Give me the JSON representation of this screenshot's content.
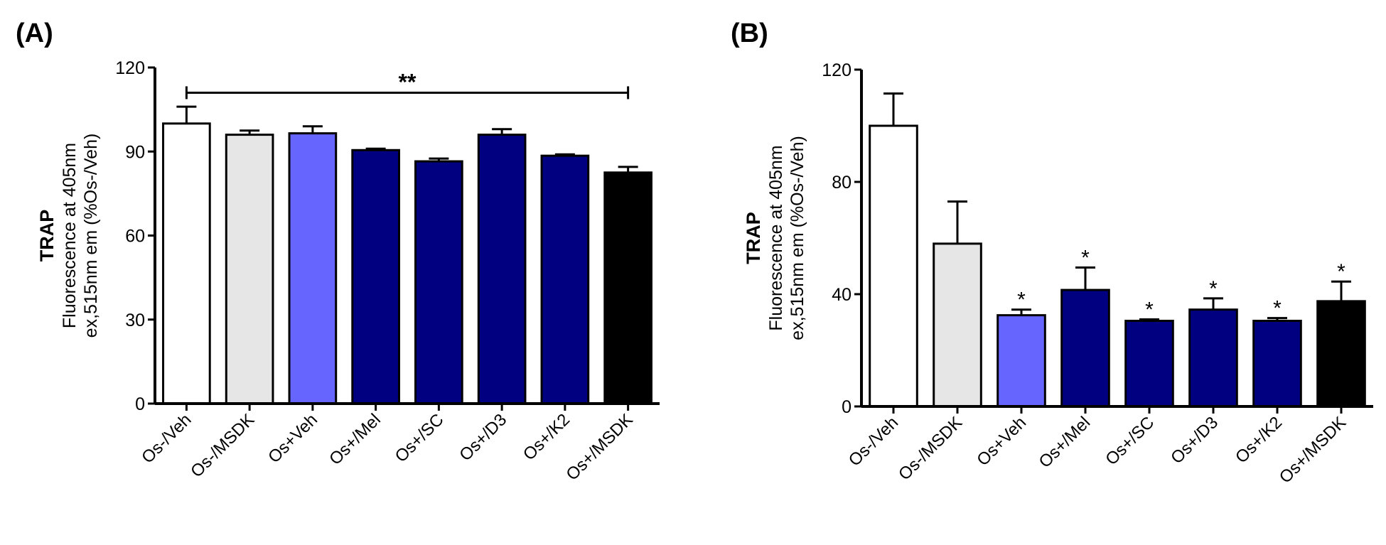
{
  "chart_data": [
    {
      "panel_label": "(A)",
      "type": "bar",
      "ylabel_bold": "TRAP",
      "ylabel_line1": "Fluorescence at 405nm",
      "ylabel_line2": "ex,515nm em (%Os-/Veh)",
      "ylim": [
        0,
        120
      ],
      "yticks": [
        0,
        30,
        60,
        90,
        120
      ],
      "categories": [
        "Os-/Veh",
        "Os-/MSDK",
        "Os+Veh",
        "Os+/Mel",
        "Os+/SC",
        "Os+/D3",
        "Os+/K2",
        "Os+/MSDK"
      ],
      "values": [
        100,
        96,
        96.5,
        90.5,
        86.5,
        96,
        88.5,
        82.5
      ],
      "errors": [
        6,
        1.5,
        2.5,
        0.5,
        1,
        2,
        0.5,
        2
      ],
      "colors": [
        "#ffffff",
        "#e6e6e6",
        "#6666ff",
        "#000080",
        "#000080",
        "#000080",
        "#000080",
        "#000000"
      ],
      "significance": {
        "from": "Os-/Veh",
        "to": "Os+/MSDK",
        "label": "**",
        "y": 111
      },
      "bar_labels": []
    },
    {
      "panel_label": "(B)",
      "type": "bar",
      "ylabel_bold": "TRAP",
      "ylabel_line1": "Fluorescence at 405nm",
      "ylabel_line2": "ex,515nm em (%Os-/Veh)",
      "ylim": [
        0,
        120
      ],
      "yticks": [
        0,
        40,
        80,
        120
      ],
      "categories": [
        "Os-/Veh",
        "Os-/MSDK",
        "Os+Veh",
        "Os+/Mel",
        "Os+/SC",
        "Os+/D3",
        "Os+/K2",
        "Os+/MSDK"
      ],
      "values": [
        100,
        58,
        32.5,
        41.5,
        30.5,
        34.5,
        30.5,
        37.5
      ],
      "errors": [
        11.5,
        15,
        2,
        8,
        0.5,
        4,
        1,
        7
      ],
      "colors": [
        "#ffffff",
        "#e6e6e6",
        "#6666ff",
        "#000080",
        "#000080",
        "#000080",
        "#000080",
        "#000000"
      ],
      "significance": null,
      "bar_labels": [
        "",
        "",
        "*",
        "*",
        "*",
        "*",
        "*",
        "*"
      ]
    }
  ]
}
